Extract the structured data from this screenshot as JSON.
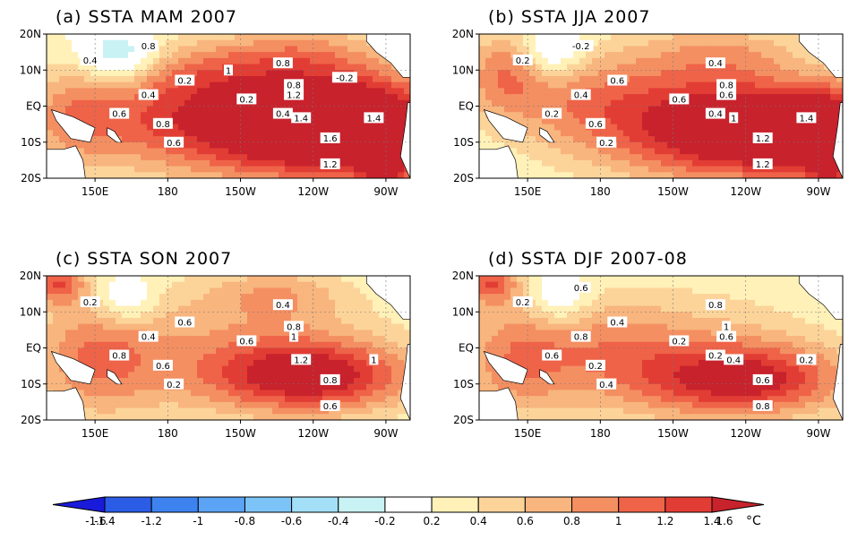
{
  "panels": [
    {
      "title": "(a) SSTA MAM 2007"
    },
    {
      "title": "(b) SSTA JJA 2007"
    },
    {
      "title": "(c) SSTA SON 2007"
    },
    {
      "title": "(d) SSTA DJF 2007-08"
    }
  ],
  "lat_labels": [
    "20N",
    "10N",
    "EQ",
    "10S",
    "20S"
  ],
  "lon_labels": [
    "150E",
    "180",
    "150W",
    "120W",
    "90W"
  ],
  "colorbar": {
    "ticks": [
      "-1.6",
      "-1.4",
      "-1.2",
      "-1",
      "-0.8",
      "-0.6",
      "-0.4",
      "-0.2",
      "0.2",
      "0.4",
      "0.6",
      "0.8",
      "1",
      "1.2",
      "1.4",
      "1.6"
    ],
    "unit": "°C",
    "colors": [
      "#1a1adb",
      "#2a5ce6",
      "#3d82ef",
      "#5ba3f5",
      "#7cc4f8",
      "#a3e0f8",
      "#c9f2f4",
      "#ffffff",
      "#fff1b8",
      "#fcd49a",
      "#f8b57e",
      "#f48f62",
      "#ef6348",
      "#e23d34",
      "#c8222c"
    ]
  },
  "contour_labels": [
    [
      "0.4",
      "0.2",
      "0.4",
      "0.6",
      "0.8",
      "0.6",
      "0.2",
      "0.8",
      "0.8",
      "1.2",
      "1.4",
      "1.6",
      "1.4",
      "1.2",
      "0.8",
      "0.4",
      "-0.2",
      "1"
    ],
    [
      "0.2",
      "0.6",
      "0.4",
      "0.2",
      "0.6",
      "0.2",
      "0.6",
      "0.4",
      "0.8",
      "0.6",
      "1",
      "1.2",
      "1.4",
      "1.2",
      "-0.2",
      "0.4"
    ],
    [
      "0.2",
      "0.6",
      "0.4",
      "0.8",
      "0.6",
      "0.2",
      "0.6",
      "0.4",
      "0.8",
      "1",
      "1.2",
      "0.8",
      "1",
      "0.6"
    ],
    [
      "0.2",
      "0.4",
      "0.8",
      "0.6",
      "0.2",
      "0.4",
      "0.2",
      "0.8",
      "1",
      "0.6",
      "0.4",
      "0.6",
      "0.2",
      "0.8",
      "0.6",
      "0.2"
    ]
  ]
}
